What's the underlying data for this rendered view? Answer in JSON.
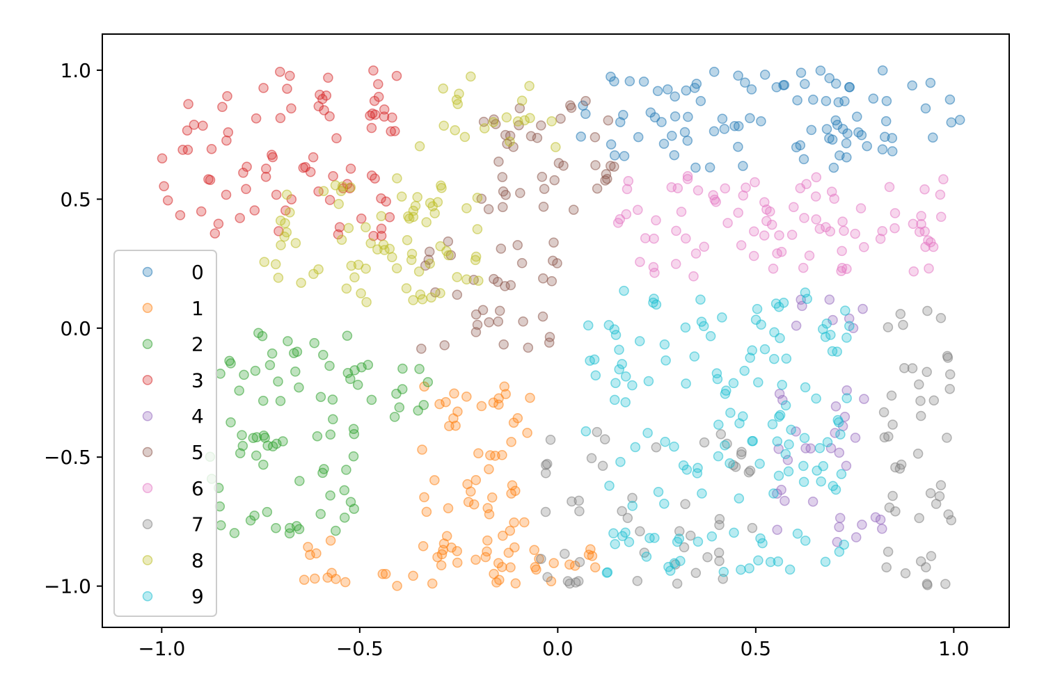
{
  "chart_data": {
    "type": "scatter",
    "title": "",
    "xlabel": "",
    "ylabel": "",
    "xlim": [
      -1.15,
      1.14
    ],
    "ylim": [
      -1.16,
      1.14
    ],
    "x_ticks": [
      {
        "value": -1.0,
        "label": "−1.0"
      },
      {
        "value": -0.5,
        "label": "−0.5"
      },
      {
        "value": 0.0,
        "label": "0.0"
      },
      {
        "value": 0.5,
        "label": "0.5"
      },
      {
        "value": 1.0,
        "label": "1.0"
      }
    ],
    "y_ticks": [
      {
        "value": 1.0,
        "label": "1.0"
      },
      {
        "value": 0.5,
        "label": "0.5"
      },
      {
        "value": 0.0,
        "label": "0.0"
      },
      {
        "value": -0.5,
        "label": "−0.5"
      },
      {
        "value": -1.0,
        "label": "−1.0"
      }
    ],
    "grid": false,
    "legend_position": "left-center",
    "marker_alpha": 0.3,
    "series": [
      {
        "name": "0",
        "color": "#1f77b4",
        "clusters": [
          {
            "x": [
              0.05,
              1.02
            ],
            "y": [
              0.62,
              1.0
            ],
            "n": 95
          }
        ]
      },
      {
        "name": "1",
        "color": "#ff7f0e",
        "clusters": [
          {
            "x": [
              -0.35,
              -0.05
            ],
            "y": [
              -0.95,
              -0.22
            ],
            "n": 55
          },
          {
            "x": [
              -0.65,
              0.1
            ],
            "y": [
              -1.0,
              -0.82
            ],
            "n": 40
          }
        ]
      },
      {
        "name": "2",
        "color": "#2ca02c",
        "clusters": [
          {
            "x": [
              -0.88,
              -0.5
            ],
            "y": [
              -0.8,
              0.0
            ],
            "n": 70
          },
          {
            "x": [
              -0.55,
              -0.3
            ],
            "y": [
              -0.35,
              -0.12
            ],
            "n": 15
          }
        ]
      },
      {
        "name": "3",
        "color": "#d62728",
        "clusters": [
          {
            "x": [
              -1.0,
              -0.4
            ],
            "y": [
              0.35,
              1.0
            ],
            "n": 85
          }
        ]
      },
      {
        "name": "4",
        "color": "#9467bd",
        "clusters": [
          {
            "x": [
              0.55,
              0.85
            ],
            "y": [
              -0.85,
              -0.2
            ],
            "n": 30
          },
          {
            "x": [
              0.6,
              0.8
            ],
            "y": [
              0.0,
              0.15
            ],
            "n": 8
          }
        ]
      },
      {
        "name": "5",
        "color": "#8c564b",
        "clusters": [
          {
            "x": [
              -0.2,
              0.15
            ],
            "y": [
              0.45,
              0.9
            ],
            "n": 40
          },
          {
            "x": [
              -0.35,
              0.0
            ],
            "y": [
              -0.1,
              0.35
            ],
            "n": 35
          }
        ]
      },
      {
        "name": "6",
        "color": "#e377c2",
        "clusters": [
          {
            "x": [
              0.15,
              1.0
            ],
            "y": [
              0.2,
              0.6
            ],
            "n": 90
          }
        ]
      },
      {
        "name": "7",
        "color": "#7f7f7f",
        "clusters": [
          {
            "x": [
              0.82,
              1.0
            ],
            "y": [
              -1.0,
              0.1
            ],
            "n": 45
          },
          {
            "x": [
              -0.05,
              0.5
            ],
            "y": [
              -1.0,
              -0.4
            ],
            "n": 50
          }
        ]
      },
      {
        "name": "8",
        "color": "#bcbd22",
        "clusters": [
          {
            "x": [
              -0.75,
              -0.2
            ],
            "y": [
              0.1,
              0.6
            ],
            "n": 75
          },
          {
            "x": [
              -0.35,
              0.0
            ],
            "y": [
              0.7,
              1.0
            ],
            "n": 20
          }
        ]
      },
      {
        "name": "9",
        "color": "#17becf",
        "clusters": [
          {
            "x": [
              0.05,
              0.75
            ],
            "y": [
              -0.95,
              0.15
            ],
            "n": 120
          },
          {
            "x": [
              0.4,
              0.7
            ],
            "y": [
              -0.55,
              0.05
            ],
            "n": 30
          }
        ]
      }
    ]
  }
}
